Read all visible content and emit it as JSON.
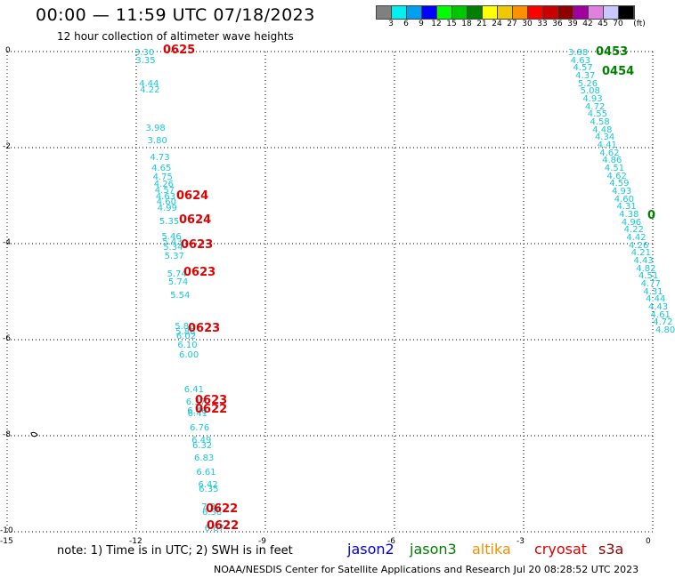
{
  "header": {
    "title": "00:00 — 11:59 UTC 07/18/2023",
    "subtitle": "12 hour collection of altimeter wave heights"
  },
  "legend": {
    "unit": "(ft)",
    "colors": [
      "#808080",
      "#00f0f0",
      "#00a0f0",
      "#0000ff",
      "#00ff00",
      "#00c800",
      "#008000",
      "#ffff00",
      "#f0c800",
      "#ff9000",
      "#ff0000",
      "#c80000",
      "#900000",
      "#a000a0",
      "#e080e0",
      "#c8c8ff",
      "#000000"
    ],
    "ticks": [
      "3",
      "6",
      "9",
      "12",
      "15",
      "18",
      "21",
      "24",
      "27",
      "30",
      "33",
      "36",
      "39",
      "42",
      "45",
      "70"
    ]
  },
  "map": {
    "x_ticks": [
      "-15",
      "-12",
      "-9",
      "-6",
      "-3",
      "0"
    ],
    "y_ticks": [
      "0",
      "-2",
      "-4",
      "-6",
      "-8",
      "-10"
    ],
    "swh_color": "#18c8d8",
    "west_track": [
      "3.30",
      "3.35",
      "4.44",
      "4.22",
      "3.98",
      "3.80",
      "4.73",
      "4.65",
      "4.75",
      "4.26",
      "4.57",
      "4.63",
      "4.60",
      "4.99",
      "5.35",
      "5.46",
      "5.43",
      "5.34",
      "5.37",
      "5.74",
      "5.74",
      "5.54",
      "5.82",
      "5.86",
      "6.02",
      "6.10",
      "6.00",
      "6.41",
      "6.37",
      "6.46",
      "6.41",
      "6.76",
      "6.49",
      "6.32",
      "6.83",
      "6.61",
      "6.42",
      "6.35",
      "7.32",
      "6.38",
      "6.87"
    ],
    "east_track": [
      "3.88",
      "4.63",
      "4.57",
      "4.37",
      "5.26",
      "5.08",
      "4.93",
      "4.72",
      "4.55",
      "4.58",
      "4.48",
      "4.34",
      "4.41",
      "4.62",
      "4.86",
      "4.51",
      "4.62",
      "4.59",
      "4.93",
      "4.60",
      "4.31",
      "4.38",
      "4.96",
      "4.22",
      "4.42",
      "4.26",
      "4.21",
      "4.43",
      "4.82",
      "4.51",
      "4.77",
      "4.31",
      "4.44",
      "4.43",
      "4.61",
      "4.72",
      "4.80"
    ],
    "pass_labels": [
      {
        "text": "0625",
        "color": "#e00000"
      },
      {
        "text": "0624",
        "color": "#e00000"
      },
      {
        "text": "0624",
        "color": "#e00000"
      },
      {
        "text": "0623",
        "color": "#e00000"
      },
      {
        "text": "0623",
        "color": "#e00000"
      },
      {
        "text": "0623",
        "color": "#e00000"
      },
      {
        "text": "0623",
        "color": "#e00000"
      },
      {
        "text": "0622",
        "color": "#e00000"
      },
      {
        "text": "0622",
        "color": "#e00000"
      },
      {
        "text": "0622",
        "color": "#e00000"
      },
      {
        "text": "0453",
        "color": "#008000"
      },
      {
        "text": "0454",
        "color": "#008000"
      },
      {
        "text": "0",
        "color": "#008000"
      }
    ]
  },
  "footer": {
    "note": "note:  1) Time is in UTC;  2) SWH is in feet",
    "satellites": [
      {
        "name": "jason2",
        "color": "#0000e0"
      },
      {
        "name": "jason3",
        "color": "#008000"
      },
      {
        "name": "altika",
        "color": "#f09000"
      },
      {
        "name": "cryosat",
        "color": "#e00000"
      },
      {
        "name": "s3a",
        "color": "#900000"
      }
    ],
    "credit": "NOAA/NESDIS Center for Satellite Applications and Research    Jul 20 08:28:52 UTC 2023"
  }
}
